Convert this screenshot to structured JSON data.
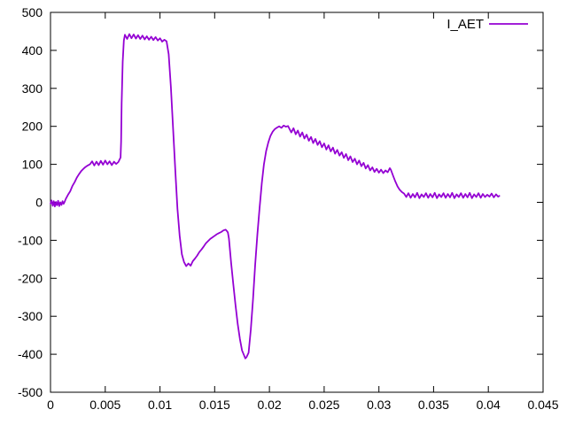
{
  "chart_data": {
    "type": "line",
    "title": "",
    "xlabel": "",
    "ylabel": "",
    "xlim": [
      0,
      0.045
    ],
    "ylim": [
      -500,
      500
    ],
    "x_ticks": [
      0,
      0.005,
      0.01,
      0.015,
      0.02,
      0.025,
      0.03,
      0.035,
      0.04,
      0.045
    ],
    "x_tick_labels": [
      "0",
      "0.005",
      "0.01",
      "0.015",
      "0.02",
      "0.025",
      "0.03",
      "0.035",
      "0.04",
      "0.045"
    ],
    "y_ticks": [
      -500,
      -400,
      -300,
      -200,
      -100,
      0,
      100,
      200,
      300,
      400,
      500
    ],
    "y_tick_labels": [
      "-500",
      "-400",
      "-300",
      "-200",
      "-100",
      "0",
      "100",
      "200",
      "300",
      "400",
      "500"
    ],
    "grid": false,
    "background_color": "#ffffff",
    "border_color": "#000000",
    "text_color": "#000000",
    "legend": {
      "position": "top-right-inside",
      "entries": [
        "I_AET"
      ]
    },
    "series": [
      {
        "name": "I_AET",
        "color": "#9400d3",
        "points": [
          [
            0,
            -3
          ],
          [
            0.0001,
            5
          ],
          [
            0.0002,
            -9
          ],
          [
            0.0003,
            3
          ],
          [
            0.0004,
            -11
          ],
          [
            0.0005,
            1
          ],
          [
            0.0006,
            -8
          ],
          [
            0.0007,
            4
          ],
          [
            0.0008,
            -10
          ],
          [
            0.0009,
            0
          ],
          [
            0.001,
            -7
          ],
          [
            0.0011,
            3
          ],
          [
            0.0012,
            -4
          ],
          [
            0.0013,
            2
          ],
          [
            0.0014,
            9
          ],
          [
            0.0016,
            20
          ],
          [
            0.0018,
            29
          ],
          [
            0.002,
            43
          ],
          [
            0.0022,
            53
          ],
          [
            0.0024,
            65
          ],
          [
            0.0026,
            74
          ],
          [
            0.0028,
            82
          ],
          [
            0.003,
            88
          ],
          [
            0.0032,
            93
          ],
          [
            0.0034,
            97
          ],
          [
            0.0036,
            100
          ],
          [
            0.0038,
            108
          ],
          [
            0.004,
            97
          ],
          [
            0.0042,
            107
          ],
          [
            0.0044,
            98
          ],
          [
            0.0046,
            109
          ],
          [
            0.0048,
            99
          ],
          [
            0.005,
            110
          ],
          [
            0.0052,
            100
          ],
          [
            0.0054,
            108
          ],
          [
            0.0056,
            98
          ],
          [
            0.0058,
            107
          ],
          [
            0.006,
            101
          ],
          [
            0.0062,
            106
          ],
          [
            0.0063,
            112
          ],
          [
            0.0064,
            118
          ],
          [
            0.00645,
            160
          ],
          [
            0.0065,
            260
          ],
          [
            0.0066,
            370
          ],
          [
            0.0067,
            426
          ],
          [
            0.0068,
            441
          ],
          [
            0.007,
            430
          ],
          [
            0.0072,
            443
          ],
          [
            0.0074,
            432
          ],
          [
            0.0076,
            442
          ],
          [
            0.0078,
            431
          ],
          [
            0.008,
            440
          ],
          [
            0.0082,
            430
          ],
          [
            0.0084,
            439
          ],
          [
            0.0086,
            429
          ],
          [
            0.0088,
            437
          ],
          [
            0.009,
            428
          ],
          [
            0.0092,
            436
          ],
          [
            0.0094,
            427
          ],
          [
            0.0096,
            435
          ],
          [
            0.0098,
            426
          ],
          [
            0.01,
            432
          ],
          [
            0.0102,
            423
          ],
          [
            0.0104,
            428
          ],
          [
            0.0106,
            424
          ],
          [
            0.0108,
            390
          ],
          [
            0.011,
            303
          ],
          [
            0.0112,
            193
          ],
          [
            0.0114,
            83
          ],
          [
            0.0116,
            -17
          ],
          [
            0.0118,
            -88
          ],
          [
            0.012,
            -137
          ],
          [
            0.0122,
            -157
          ],
          [
            0.0124,
            -168
          ],
          [
            0.0126,
            -161
          ],
          [
            0.0128,
            -167
          ],
          [
            0.013,
            -155
          ],
          [
            0.0132,
            -148
          ],
          [
            0.0134,
            -140
          ],
          [
            0.0136,
            -131
          ],
          [
            0.0138,
            -124
          ],
          [
            0.014,
            -116
          ],
          [
            0.0142,
            -108
          ],
          [
            0.0144,
            -102
          ],
          [
            0.0146,
            -96
          ],
          [
            0.0148,
            -92
          ],
          [
            0.015,
            -88
          ],
          [
            0.0152,
            -84
          ],
          [
            0.0154,
            -81
          ],
          [
            0.0156,
            -78
          ],
          [
            0.0158,
            -74
          ],
          [
            0.016,
            -72
          ],
          [
            0.0161,
            -75
          ],
          [
            0.0162,
            -79
          ],
          [
            0.0163,
            -95
          ],
          [
            0.0165,
            -160
          ],
          [
            0.0167,
            -215
          ],
          [
            0.0169,
            -270
          ],
          [
            0.0171,
            -320
          ],
          [
            0.0173,
            -360
          ],
          [
            0.0175,
            -390
          ],
          [
            0.0177,
            -404
          ],
          [
            0.0178,
            -411
          ],
          [
            0.0179,
            -408
          ],
          [
            0.0181,
            -396
          ],
          [
            0.0183,
            -335
          ],
          [
            0.0185,
            -255
          ],
          [
            0.0187,
            -165
          ],
          [
            0.0189,
            -85
          ],
          [
            0.0191,
            -15
          ],
          [
            0.0193,
            50
          ],
          [
            0.0195,
            100
          ],
          [
            0.0197,
            135
          ],
          [
            0.0199,
            158
          ],
          [
            0.0201,
            175
          ],
          [
            0.0203,
            186
          ],
          [
            0.0205,
            193
          ],
          [
            0.0207,
            197
          ],
          [
            0.0209,
            200
          ],
          [
            0.0211,
            196
          ],
          [
            0.0213,
            202
          ],
          [
            0.0215,
            199
          ],
          [
            0.0217,
            201
          ],
          [
            0.022,
            184
          ],
          [
            0.0222,
            195
          ],
          [
            0.0224,
            179
          ],
          [
            0.0226,
            189
          ],
          [
            0.0228,
            173
          ],
          [
            0.023,
            184
          ],
          [
            0.0232,
            168
          ],
          [
            0.0234,
            178
          ],
          [
            0.0236,
            162
          ],
          [
            0.0238,
            172
          ],
          [
            0.024,
            156
          ],
          [
            0.0242,
            167
          ],
          [
            0.0244,
            151
          ],
          [
            0.0246,
            161
          ],
          [
            0.0248,
            145
          ],
          [
            0.025,
            155
          ],
          [
            0.0252,
            139
          ],
          [
            0.0254,
            150
          ],
          [
            0.0256,
            134
          ],
          [
            0.0258,
            144
          ],
          [
            0.026,
            128
          ],
          [
            0.0262,
            138
          ],
          [
            0.0264,
            123
          ],
          [
            0.0266,
            132
          ],
          [
            0.0268,
            117
          ],
          [
            0.027,
            127
          ],
          [
            0.0272,
            111
          ],
          [
            0.0274,
            121
          ],
          [
            0.0276,
            106
          ],
          [
            0.0278,
            115
          ],
          [
            0.028,
            100
          ],
          [
            0.0282,
            110
          ],
          [
            0.0284,
            95
          ],
          [
            0.0286,
            104
          ],
          [
            0.0288,
            89
          ],
          [
            0.029,
            98
          ],
          [
            0.0292,
            84
          ],
          [
            0.0294,
            92
          ],
          [
            0.0296,
            80
          ],
          [
            0.0298,
            88
          ],
          [
            0.03,
            78
          ],
          [
            0.0302,
            86
          ],
          [
            0.0304,
            77
          ],
          [
            0.0306,
            84
          ],
          [
            0.0308,
            79
          ],
          [
            0.031,
            90
          ],
          [
            0.0311,
            85
          ],
          [
            0.0313,
            70
          ],
          [
            0.0315,
            55
          ],
          [
            0.0317,
            42
          ],
          [
            0.0319,
            33
          ],
          [
            0.0321,
            27
          ],
          [
            0.0323,
            23
          ],
          [
            0.0325,
            14
          ],
          [
            0.0327,
            24
          ],
          [
            0.0329,
            12
          ],
          [
            0.0331,
            22
          ],
          [
            0.0333,
            13
          ],
          [
            0.0335,
            25
          ],
          [
            0.0337,
            11
          ],
          [
            0.0339,
            21
          ],
          [
            0.0341,
            14
          ],
          [
            0.0343,
            24
          ],
          [
            0.0345,
            12
          ],
          [
            0.0347,
            22
          ],
          [
            0.0349,
            13
          ],
          [
            0.0351,
            25
          ],
          [
            0.0353,
            11
          ],
          [
            0.0355,
            21
          ],
          [
            0.0357,
            14
          ],
          [
            0.0359,
            24
          ],
          [
            0.0361,
            12
          ],
          [
            0.0363,
            22
          ],
          [
            0.0365,
            13
          ],
          [
            0.0367,
            25
          ],
          [
            0.0369,
            11
          ],
          [
            0.0371,
            21
          ],
          [
            0.0373,
            14
          ],
          [
            0.0375,
            24
          ],
          [
            0.0377,
            12
          ],
          [
            0.0379,
            22
          ],
          [
            0.0381,
            13
          ],
          [
            0.0383,
            25
          ],
          [
            0.0385,
            11
          ],
          [
            0.0387,
            21
          ],
          [
            0.0389,
            14
          ],
          [
            0.0391,
            24
          ],
          [
            0.0393,
            12
          ],
          [
            0.0395,
            22
          ],
          [
            0.0397,
            14
          ],
          [
            0.0399,
            20
          ],
          [
            0.0401,
            15
          ],
          [
            0.0403,
            23
          ],
          [
            0.0405,
            13
          ],
          [
            0.0407,
            21
          ],
          [
            0.0409,
            15
          ],
          [
            0.041,
            17
          ]
        ]
      }
    ]
  }
}
